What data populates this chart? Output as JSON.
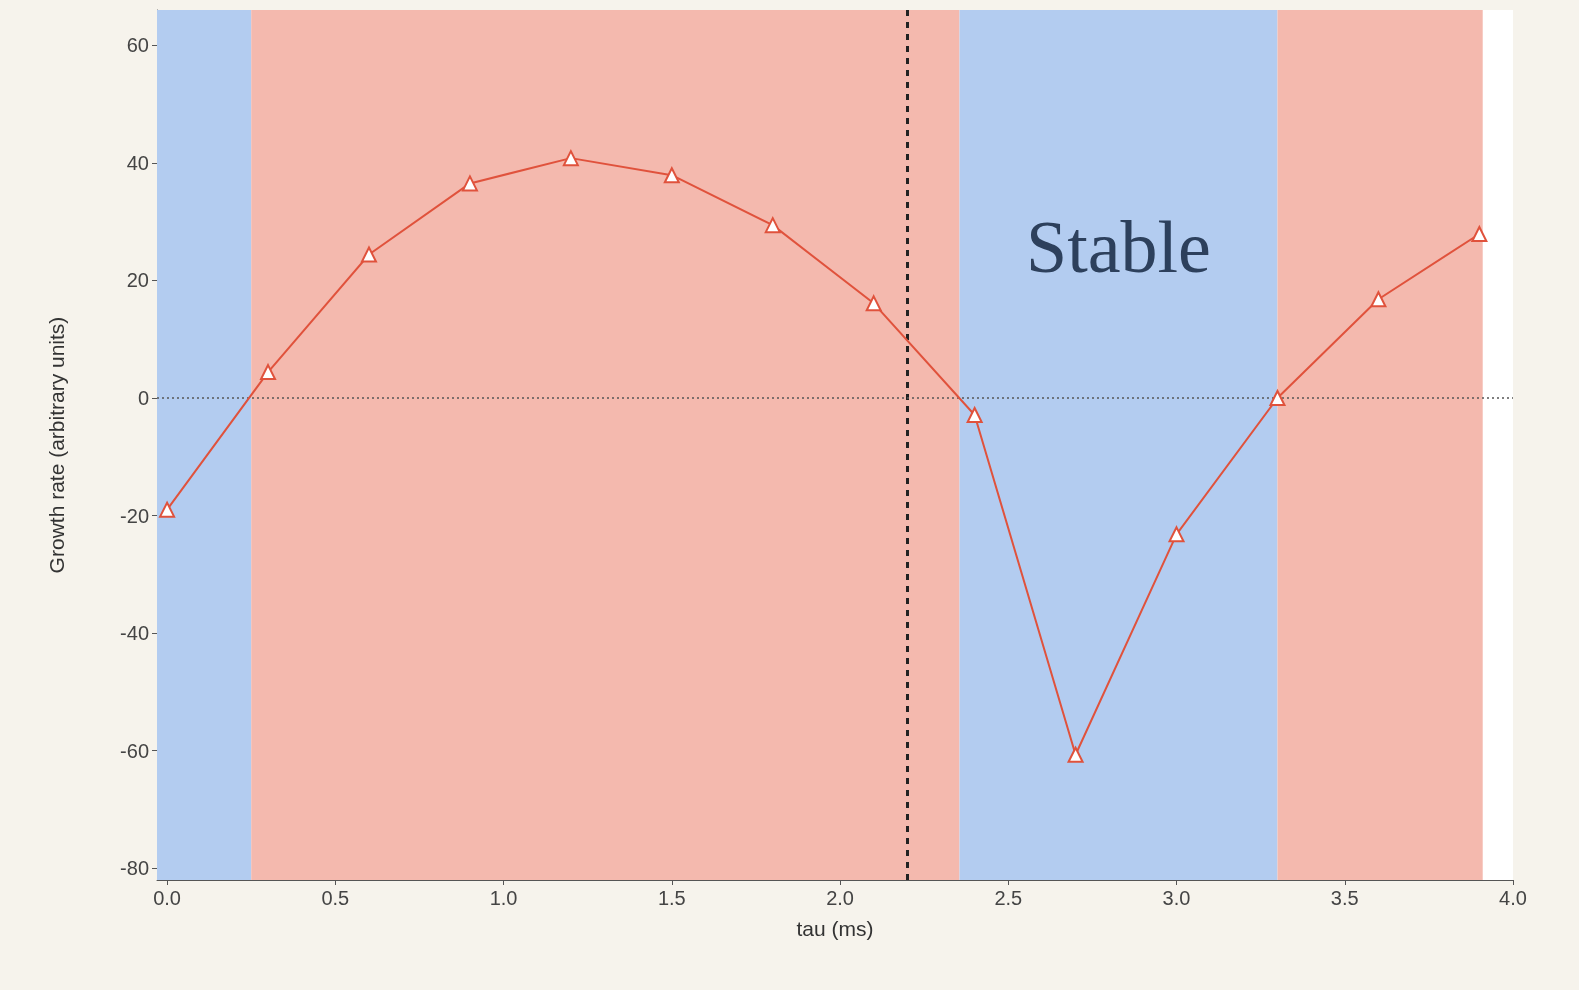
{
  "chart_data": {
    "type": "line",
    "xlabel": "tau (ms)",
    "ylabel": "Growth rate (arbitrary units)",
    "x": [
      0,
      0.3,
      0.6,
      0.9,
      1.2,
      1.5,
      1.8,
      2.1,
      2.4,
      2.7,
      3.0,
      3.3,
      3.6,
      3.9
    ],
    "series": [
      {
        "color": "#e0523c",
        "values": [
          -19,
          4.4,
          24.4,
          36.5,
          40.8,
          37.9,
          29.4,
          16.1,
          -2.9,
          -60.7,
          -23.2,
          0,
          16.8,
          27.9
        ]
      }
    ],
    "marker": "triangle",
    "line_style": "solid",
    "grid": false,
    "xlim": [
      -0.03,
      4.0
    ],
    "xticks": [
      {
        "value": 0,
        "label": "0.0"
      },
      {
        "value": 0.5,
        "label": "0.5"
      },
      {
        "value": 1,
        "label": "1.0"
      },
      {
        "value": 1.5,
        "label": "1.5"
      },
      {
        "value": 2,
        "label": "2.0"
      },
      {
        "value": 2.5,
        "label": "2.5"
      },
      {
        "value": 3,
        "label": "3.0"
      },
      {
        "value": 3.5,
        "label": "3.5"
      },
      {
        "value": 4,
        "label": "4.0"
      }
    ],
    "ylim": [
      -82,
      66
    ],
    "yticks": [
      -80,
      -60,
      -40,
      -20,
      0,
      20,
      40,
      60
    ],
    "bands": [
      {
        "axis": "x",
        "from": -0.03,
        "to": 0.25,
        "color": "#b3ccf0"
      },
      {
        "axis": "x",
        "from": 0.25,
        "to": 2.355,
        "color": "#f4b9ae"
      },
      {
        "axis": "x",
        "from": 2.355,
        "to": 3.3,
        "color": "#b3ccf0",
        "label": "Stable"
      },
      {
        "axis": "x",
        "from": 3.3,
        "to": 3.91,
        "color": "#f4b9ae"
      }
    ],
    "ref_lines": [
      {
        "axis": "x",
        "value": 2.2,
        "color": "#222222",
        "line_style": "dashed"
      },
      {
        "axis": "y",
        "value": 0,
        "color": "#555555",
        "line_style": "dotted"
      }
    ]
  }
}
